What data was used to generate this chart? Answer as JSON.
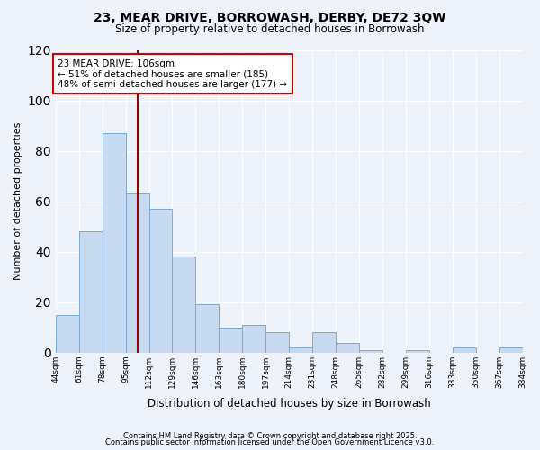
{
  "title": "23, MEAR DRIVE, BORROWASH, DERBY, DE72 3QW",
  "subtitle": "Size of property relative to detached houses in Borrowash",
  "xlabel": "Distribution of detached houses by size in Borrowash",
  "ylabel": "Number of detached properties",
  "bar_values": [
    15,
    48,
    87,
    63,
    57,
    38,
    19,
    10,
    11,
    8,
    2,
    8,
    4,
    1,
    0,
    1,
    0,
    2,
    0,
    2
  ],
  "bin_labels": [
    "44sqm",
    "61sqm",
    "78sqm",
    "95sqm",
    "112sqm",
    "129sqm",
    "146sqm",
    "163sqm",
    "180sqm",
    "197sqm",
    "214sqm",
    "231sqm",
    "248sqm",
    "265sqm",
    "282sqm",
    "299sqm",
    "316sqm",
    "333sqm",
    "350sqm",
    "367sqm",
    "384sqm"
  ],
  "bar_color": "#c8daf0",
  "bar_edge_color": "#7aaad4",
  "vline_color": "#990000",
  "vline_pos": 3.5,
  "annotation_title": "23 MEAR DRIVE: 106sqm",
  "annotation_line1": "← 51% of detached houses are smaller (185)",
  "annotation_line2": "48% of semi-detached houses are larger (177) →",
  "annotation_box_facecolor": "#ffffff",
  "annotation_box_edgecolor": "#cc0000",
  "ylim": [
    0,
    120
  ],
  "yticks": [
    0,
    20,
    40,
    60,
    80,
    100,
    120
  ],
  "background_color": "#eef2fa",
  "grid_color": "#ffffff",
  "footer1": "Contains HM Land Registry data © Crown copyright and database right 2025.",
  "footer2": "Contains public sector information licensed under the Open Government Licence v3.0."
}
